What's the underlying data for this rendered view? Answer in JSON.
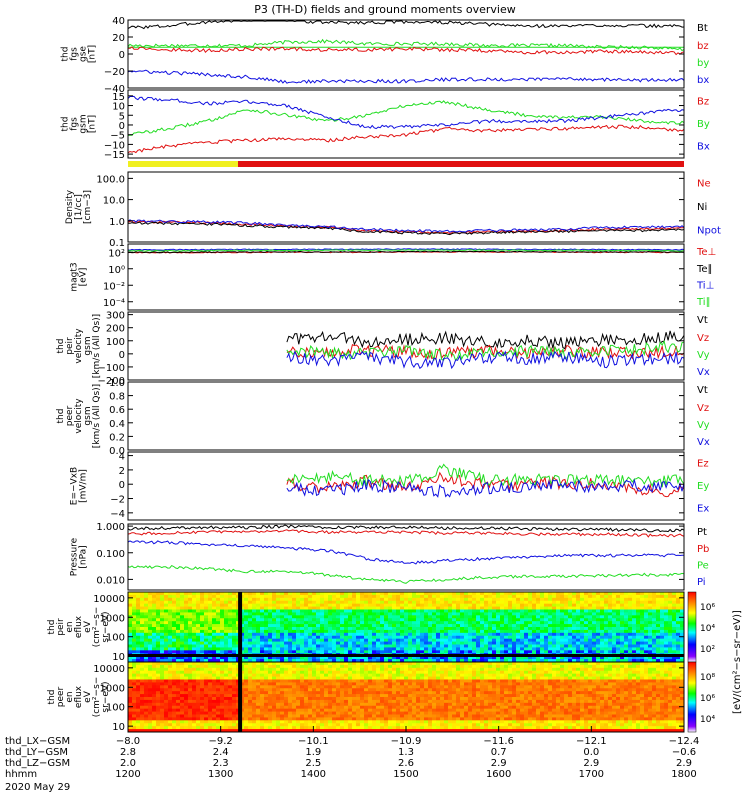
{
  "title": "P3 (TH-D) fields and ground moments overview",
  "colors": {
    "black": "#000000",
    "red": "#e01010",
    "green": "#22dd22",
    "blue": "#1010e0",
    "yellow": "#f0f020"
  },
  "chart_data": [
    {
      "type": "line",
      "ylabel": [
        "thd",
        "fgs",
        "gse",
        "[nT]"
      ],
      "ylim": [
        -40,
        40
      ],
      "yticks": [
        -40,
        -20,
        0,
        20,
        40
      ],
      "ytick_labels": [
        "−40",
        "−20",
        "0",
        "20",
        "40"
      ],
      "series": [
        {
          "name": "Bt",
          "color": "#000000",
          "values": [
            31,
            33,
            38,
            40,
            40,
            37,
            37,
            38,
            37,
            35,
            33,
            33,
            34,
            33,
            33
          ]
        },
        {
          "name": "bz",
          "color": "#e01010",
          "values": [
            8,
            5,
            4,
            6,
            6,
            5,
            5,
            6,
            5,
            4,
            2,
            2,
            3,
            2,
            1
          ]
        },
        {
          "name": "by",
          "color": "#22dd22",
          "values": [
            10,
            10,
            10,
            10,
            14,
            15,
            12,
            12,
            12,
            10,
            10,
            10,
            8,
            8,
            5
          ]
        },
        {
          "name": "bx",
          "color": "#1010e0",
          "values": [
            -20,
            -22,
            -24,
            -27,
            -33,
            -32,
            -32,
            -32,
            -30,
            -30,
            -30,
            -29,
            -30,
            -31,
            -30
          ]
        }
      ]
    },
    {
      "type": "line",
      "ylabel": [
        "thd",
        "fgs",
        "gsm",
        "[nT]"
      ],
      "ylim": [
        -17,
        18
      ],
      "yticks": [
        -15,
        -10,
        -5,
        0,
        5,
        10,
        15
      ],
      "ytick_labels": [
        "−15",
        "−10",
        "−5",
        "0",
        "5",
        "10",
        "15"
      ],
      "series": [
        {
          "name": "Bz",
          "color": "#e01010",
          "values": [
            -14,
            -11,
            -9,
            -8,
            -7,
            -8,
            -6,
            -5,
            -2,
            -3,
            -2,
            -2,
            -1,
            -1,
            -3
          ]
        },
        {
          "name": "By",
          "color": "#22dd22",
          "values": [
            -5,
            -2,
            2,
            8,
            5,
            2,
            5,
            10,
            12,
            8,
            5,
            4,
            4,
            2,
            1
          ]
        },
        {
          "name": "Bx",
          "color": "#1010e0",
          "values": [
            14,
            13,
            11,
            12,
            10,
            4,
            -1,
            -1,
            0,
            2,
            2,
            2,
            4,
            6,
            8
          ]
        }
      ]
    },
    {
      "type": "line",
      "ylabel": [
        "Density",
        "[1/cc]",
        "[cm−3]"
      ],
      "ylim": [
        0.1,
        200
      ],
      "scale": "log",
      "yticks": [
        0.1,
        1.0,
        10.0,
        100.0
      ],
      "ytick_labels": [
        "0.1",
        "1.0",
        "10.0",
        "100.0"
      ],
      "series": [
        {
          "name": "Ne",
          "color": "#e01010",
          "values": [
            0.9,
            0.85,
            0.8,
            0.7,
            0.55,
            0.5,
            0.35,
            0.3,
            0.28,
            0.3,
            0.32,
            0.35,
            0.4,
            0.4,
            0.45
          ]
        },
        {
          "name": "Ni",
          "color": "#000000",
          "values": [
            0.8,
            0.75,
            0.7,
            0.6,
            0.5,
            0.45,
            0.3,
            0.27,
            0.25,
            0.27,
            0.3,
            0.32,
            0.35,
            0.35,
            0.4
          ]
        },
        {
          "name": "Npot",
          "color": "#1010e0",
          "values": [
            1.0,
            0.95,
            0.9,
            0.8,
            0.6,
            0.55,
            0.4,
            0.35,
            0.32,
            0.35,
            0.38,
            0.4,
            0.5,
            0.5,
            0.55
          ]
        }
      ]
    },
    {
      "type": "line",
      "ylabel": [
        "magt3",
        "[eV]"
      ],
      "ylim": [
        1e-05,
        1000
      ],
      "scale": "log",
      "yticks": [
        0.0001,
        0.01,
        1,
        100
      ],
      "ytick_labels": [
        "10⁻⁴",
        "10⁻²",
        "10⁰",
        "10²"
      ],
      "series": [
        {
          "name": "Te⊥",
          "color": "#e01010",
          "values": [
            90,
            90,
            95,
            95,
            100,
            100,
            100,
            110,
            110,
            110,
            105,
            105,
            100,
            100,
            100
          ]
        },
        {
          "name": "Te∥",
          "color": "#000000",
          "values": [
            100,
            100,
            105,
            110,
            110,
            110,
            110,
            120,
            120,
            120,
            115,
            115,
            110,
            110,
            110
          ]
        },
        {
          "name": "Ti⊥",
          "color": "#1010e0",
          "values": [
            200,
            200,
            210,
            220,
            220,
            230,
            230,
            240,
            240,
            230,
            220,
            220,
            210,
            210,
            200
          ]
        },
        {
          "name": "Ti∥",
          "color": "#22dd22",
          "values": [
            150,
            150,
            160,
            170,
            170,
            180,
            180,
            190,
            190,
            180,
            170,
            170,
            160,
            160,
            150
          ]
        }
      ]
    },
    {
      "type": "line",
      "ylabel": [
        "thd",
        "peir",
        "velocity",
        "gsm",
        "[km/s (All Qs)]"
      ],
      "ylim": [
        -200,
        320
      ],
      "yticks": [
        -200,
        -100,
        0,
        100,
        200,
        300
      ],
      "ytick_labels": [
        "−200",
        "−100",
        "0",
        "100",
        "200",
        "300"
      ],
      "x_start_index": 4,
      "series": [
        {
          "name": "Vt",
          "color": "#000000",
          "values": [
            null,
            null,
            null,
            null,
            100,
            150,
            90,
            110,
            120,
            90,
            100,
            80,
            110,
            120,
            140
          ]
        },
        {
          "name": "Vz",
          "color": "#e01010",
          "values": [
            null,
            null,
            null,
            null,
            20,
            10,
            30,
            10,
            0,
            20,
            10,
            20,
            10,
            0,
            40
          ]
        },
        {
          "name": "Vy",
          "color": "#22dd22",
          "values": [
            null,
            null,
            null,
            null,
            40,
            0,
            0,
            20,
            -20,
            10,
            20,
            10,
            20,
            40,
            60
          ]
        },
        {
          "name": "Vx",
          "color": "#1010e0",
          "values": [
            null,
            null,
            null,
            null,
            -20,
            -60,
            -20,
            -60,
            -80,
            -20,
            -40,
            -20,
            -60,
            -40,
            -30
          ]
        }
      ]
    },
    {
      "type": "line",
      "ylabel": [
        "thd",
        "peer",
        "velocity",
        "gsm",
        "[km/s (All Qs)]"
      ],
      "ylim": [
        0,
        1
      ],
      "yticks": [
        0,
        0.2,
        0.4,
        0.6,
        0.8,
        1.0
      ],
      "ytick_labels": [
        "0.0",
        "0.2",
        "0.4",
        "0.6",
        "0.8",
        "1.0"
      ],
      "series": [
        {
          "name": "Vt",
          "color": "#000000",
          "values": []
        },
        {
          "name": "Vz",
          "color": "#e01010",
          "values": []
        },
        {
          "name": "Vy",
          "color": "#22dd22",
          "values": []
        },
        {
          "name": "Vx",
          "color": "#1010e0",
          "values": []
        }
      ]
    },
    {
      "type": "line",
      "ylabel": [
        "E=−VxB",
        "[mV/m]"
      ],
      "ylim": [
        -5,
        4.5
      ],
      "yticks": [
        -4,
        -2,
        0,
        2,
        4
      ],
      "ytick_labels": [
        "−4",
        "−2",
        "0",
        "2",
        "4"
      ],
      "series": [
        {
          "name": "Ez",
          "color": "#e01010",
          "values": [
            null,
            null,
            null,
            null,
            0,
            -0.5,
            0.5,
            -0.5,
            1,
            0,
            0,
            0.2,
            0,
            -1,
            -0.8
          ]
        },
        {
          "name": "Ey",
          "color": "#22dd22",
          "values": [
            null,
            null,
            null,
            null,
            0.5,
            1,
            0.5,
            0.5,
            2,
            0.5,
            0.8,
            0.5,
            0.6,
            0.2,
            0.5
          ]
        },
        {
          "name": "Ex",
          "color": "#1010e0",
          "values": [
            null,
            null,
            null,
            null,
            -0.5,
            -1,
            -0.2,
            -0.5,
            -1,
            -0.5,
            -0.3,
            -0.2,
            -0.3,
            -0.2,
            -0.5
          ]
        }
      ]
    },
    {
      "type": "line",
      "ylabel": [
        "Pressure",
        "[nPa]"
      ],
      "ylim": [
        0.004,
        1.2
      ],
      "scale": "log",
      "yticks": [
        0.01,
        0.1,
        1.0
      ],
      "ytick_labels": [
        "0.010",
        "0.100",
        "1.000"
      ],
      "series": [
        {
          "name": "Pt",
          "color": "#000000",
          "values": [
            0.8,
            0.85,
            0.9,
            0.9,
            1.0,
            0.9,
            0.9,
            0.9,
            0.85,
            0.85,
            0.8,
            0.75,
            0.75,
            0.7,
            0.7
          ]
        },
        {
          "name": "Pb",
          "color": "#e01010",
          "values": [
            0.5,
            0.55,
            0.6,
            0.6,
            0.65,
            0.6,
            0.6,
            0.6,
            0.55,
            0.55,
            0.5,
            0.5,
            0.5,
            0.45,
            0.45
          ]
        },
        {
          "name": "Pe",
          "color": "#22dd22",
          "values": [
            0.03,
            0.03,
            0.025,
            0.02,
            0.02,
            0.015,
            0.01,
            0.008,
            0.01,
            0.012,
            0.013,
            0.013,
            0.014,
            0.015,
            0.015
          ]
        },
        {
          "name": "Pi",
          "color": "#1010e0",
          "values": [
            0.25,
            0.25,
            0.2,
            0.18,
            0.15,
            0.12,
            0.06,
            0.04,
            0.05,
            0.06,
            0.07,
            0.08,
            0.08,
            0.08,
            0.08
          ]
        }
      ]
    },
    {
      "type": "heatmap",
      "ylabel": [
        "thd",
        "peir",
        "en",
        "eflux",
        "eV",
        "(cm²−s−",
        "sr−eV)"
      ],
      "scale": "log",
      "ylim": [
        5,
        20000
      ],
      "yticks": [
        10,
        100,
        1000,
        10000
      ],
      "ytick_labels": [
        "10",
        "100",
        "1000",
        "10000"
      ],
      "colorbar": {
        "label": "[eV/(cm²−s−sr−eV)]",
        "ticks": [
          "10²",
          "10⁴",
          "10⁶"
        ]
      }
    },
    {
      "type": "heatmap",
      "ylabel": [
        "thd",
        "peer",
        "en",
        "eflux",
        "eV",
        "(cm²−s−",
        "sr−eV)"
      ],
      "scale": "log",
      "ylim": [
        5,
        20000
      ],
      "yticks": [
        10,
        100,
        1000,
        10000
      ],
      "ytick_labels": [
        "10",
        "100",
        "1000",
        "10000"
      ],
      "colorbar": {
        "label": "[eV/(cm²−s−sr−eV)]",
        "ticks": [
          "10⁴",
          "10⁶",
          "10⁸"
        ]
      }
    }
  ],
  "time_axis": {
    "hhmm_ticks": [
      "1200",
      "1300",
      "1400",
      "1500",
      "1600",
      "1700",
      "1800"
    ],
    "date": "2020 May 29",
    "rows": [
      {
        "label": "thd_LX−GSM",
        "values": [
          "−8.0",
          "−9.2",
          "−10.1",
          "−10.9",
          "−11.6",
          "−12.1",
          "−12.4"
        ]
      },
      {
        "label": "thd_LY−GSM",
        "values": [
          "2.8",
          "2.4",
          "1.9",
          "1.3",
          "0.7",
          "0.0",
          "−0.6"
        ]
      },
      {
        "label": "thd_LZ−GSM",
        "values": [
          "2.0",
          "2.3",
          "2.5",
          "2.6",
          "2.9",
          "2.9",
          "2.9"
        ]
      },
      {
        "label": "hhmm",
        "values": []
      }
    ]
  }
}
